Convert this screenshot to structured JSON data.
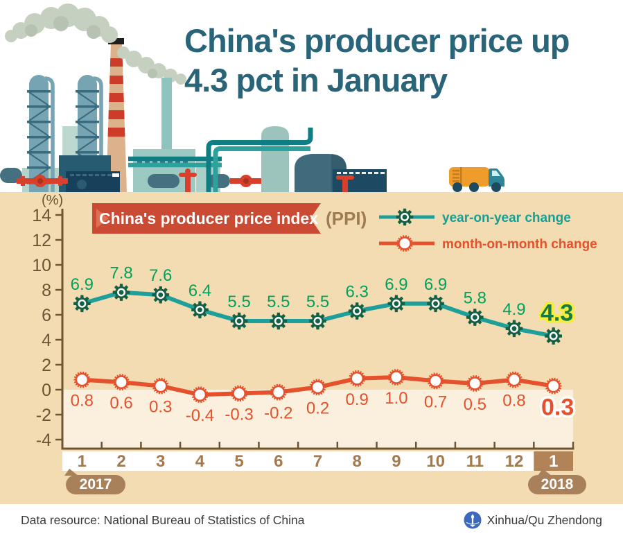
{
  "title": {
    "lines": [
      "China's producer price up",
      "4.3 pct in January"
    ]
  },
  "chart": {
    "badge": {
      "label": "China's producer price index",
      "suffix": "(PPI)"
    },
    "unit_label": "(%)",
    "legend": [
      {
        "label": "year-on-year change"
      },
      {
        "label": "month-on-month change"
      }
    ],
    "year_tags": [
      {
        "label": "2017"
      },
      {
        "label": "2018"
      }
    ],
    "colors": {
      "panel_bg": "#f4dcb2",
      "below_zero_bg": "#fbf0dd",
      "axis": "#6f5433",
      "tick_label": "#6b5334",
      "month_label": "#a3794e",
      "month_highlight_bg": "#b18356",
      "month_highlight_text": "#ffffff",
      "year_tag_bg": "#a8815b",
      "badge_bg": "#cb4a33",
      "badge_fold": "#dc7156",
      "badge_text": "#ffffff",
      "ppi_text": "#9e7b53",
      "yoy_line": "#1f9f99",
      "yoy_marker": "#156045",
      "yoy_label": "#00a15c",
      "yoy_highlight_fill": "#157a45",
      "yoy_highlight_stroke": "#f3ee3e",
      "mom_line": "#e5512c",
      "mom_label": "#e5512c",
      "mom_highlight_stroke": "#ffffff",
      "legend_yoy_text": "#1a9e92",
      "legend_mom_text": "#e5512c",
      "title_text": "#2a6478"
    }
  },
  "chart_data": {
    "type": "line",
    "title": "China's producer price index (PPI)",
    "unit": "%",
    "categories": [
      "1",
      "2",
      "3",
      "4",
      "5",
      "6",
      "7",
      "8",
      "9",
      "10",
      "11",
      "12",
      "1"
    ],
    "category_years": {
      "start": "2017",
      "end": "2018"
    },
    "series": [
      {
        "name": "year-on-year change",
        "values": [
          6.9,
          7.8,
          7.6,
          6.4,
          5.5,
          5.5,
          5.5,
          6.3,
          6.9,
          6.9,
          5.8,
          4.9,
          4.3
        ]
      },
      {
        "name": "month-on-month change",
        "values": [
          0.8,
          0.6,
          0.3,
          -0.4,
          -0.3,
          -0.2,
          0.2,
          0.9,
          1.0,
          0.7,
          0.5,
          0.8,
          0.3
        ]
      }
    ],
    "ylim": [
      -4,
      14
    ],
    "ytick_step": 2,
    "grid": false,
    "legend_position": "top-right",
    "highlight_last_point": true
  },
  "footer": {
    "source": "Data resource: National Bureau of Statistics of China",
    "credit": "Xinhua/Qu Zhendong"
  }
}
